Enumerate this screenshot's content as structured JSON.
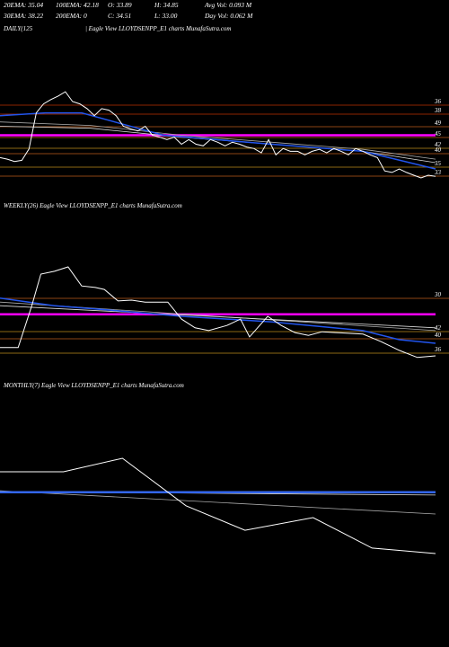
{
  "header": [
    "20EMA: 35.04",
    "100EMA: 42.18",
    "O: 33.89",
    "H: 34.85",
    "Avg Vol: 0.093 M",
    "30EMA: 38.22",
    "200EMA: 0",
    "C: 34.51",
    "L: 33.00",
    "Day Vol: 0.062 M"
  ],
  "chart_data": [
    {
      "type": "line",
      "title": "DAILY(125",
      "subtitle": "| Eagle  View  LLOYDSENPP_E1 charts MunafaSutra.com",
      "xlim": [
        0,
        480
      ],
      "ylim": [
        31,
        56
      ],
      "levels": [
        {
          "value": 36,
          "color": "#8b2500"
        },
        {
          "value": 38,
          "color": "#8b2500"
        },
        {
          "value": 49,
          "color": "#8b4513"
        },
        {
          "value": 45,
          "color": "#8b4513"
        },
        {
          "value": 42,
          "color": "#8b6914"
        },
        {
          "value": 40,
          "color": "#8b4513"
        },
        {
          "value": 35,
          "color": "#8b6914"
        },
        {
          "value": 33,
          "color": "#8b4513"
        }
      ],
      "series": [
        {
          "color": "#ff00ff",
          "width": 2.5,
          "x": [
            0,
            480
          ],
          "values": [
            43.5,
            43.5
          ]
        },
        {
          "color": "#aaaaaa",
          "width": 0.8,
          "x": [
            0,
            100,
            200,
            300,
            400,
            480
          ],
          "values": [
            46.9,
            46.0,
            43.5,
            41.7,
            39.9,
            37.4
          ]
        },
        {
          "color": "#dddddd",
          "width": 0.8,
          "x": [
            0,
            100,
            200,
            300,
            400,
            480
          ],
          "values": [
            45.8,
            45.3,
            43.0,
            41.2,
            39.4,
            36.5
          ]
        },
        {
          "color": "#2255ee",
          "width": 1.5,
          "x": [
            0,
            50,
            90,
            180,
            300,
            400,
            480
          ],
          "values": [
            48.5,
            49.2,
            49.2,
            43.5,
            41.2,
            39.4,
            34.9
          ]
        },
        {
          "color": "#ffffff",
          "width": 1,
          "x": [
            0,
            8,
            16,
            24,
            32,
            40,
            48,
            56,
            64,
            72,
            80,
            88,
            96,
            104,
            112,
            120,
            128,
            136,
            144,
            152,
            160,
            168,
            176,
            184,
            192,
            200,
            208,
            216,
            224,
            232,
            240,
            248,
            256,
            264,
            272,
            280,
            288,
            296,
            304,
            312,
            320,
            328,
            336,
            344,
            352,
            360,
            368,
            376,
            384,
            392,
            400,
            408,
            416,
            424,
            432,
            440,
            448,
            456,
            464,
            472,
            480
          ],
          "values": [
            37.8,
            37.4,
            36.8,
            37.1,
            40,
            49.2,
            51.5,
            52.6,
            53.5,
            54.6,
            52.1,
            51.5,
            50.3,
            48.5,
            50.3,
            49.9,
            48.5,
            45.8,
            45.1,
            44.6,
            45.8,
            43.5,
            43.0,
            42.4,
            43.0,
            41.2,
            42.4,
            41.2,
            40.8,
            42.4,
            41.7,
            40.8,
            41.7,
            41.2,
            40.5,
            40.1,
            39.0,
            42.4,
            38.5,
            40.1,
            39.4,
            39.4,
            38.5,
            39.4,
            39.9,
            39.0,
            40.1,
            39.4,
            38.5,
            40.1,
            39.4,
            38.5,
            37.8,
            34.4,
            34.0,
            34.9,
            34.0,
            33.3,
            32.6,
            33.3,
            33.0
          ]
        }
      ]
    },
    {
      "type": "line",
      "title": "WEEKLY(26) Eagle  View  LLOYDSENPP_E1 charts MunafaSutra.com",
      "xlim": [
        0,
        480
      ],
      "ylim": [
        31,
        56
      ],
      "levels": [
        {
          "value": 30,
          "color": "#8b4513"
        },
        {
          "value": 42,
          "color": "#8b6914"
        },
        {
          "value": 40,
          "color": "#8b4513"
        },
        {
          "value": 36,
          "color": "#8b6914"
        }
      ],
      "series": [
        {
          "color": "#ff00ff",
          "width": 2.5,
          "x": [
            0,
            480
          ],
          "values": [
            42.4,
            42.4
          ]
        },
        {
          "color": "#aaaaaa",
          "width": 0.8,
          "x": [
            0,
            480
          ],
          "values": [
            45.5,
            38.3
          ]
        },
        {
          "color": "#dddddd",
          "width": 0.8,
          "x": [
            0,
            480
          ],
          "values": [
            44.6,
            39.0
          ]
        },
        {
          "color": "#2255ee",
          "width": 1.5,
          "x": [
            0,
            60,
            120,
            200,
            300,
            400,
            440,
            480
          ],
          "values": [
            46.5,
            44.6,
            43.5,
            41.9,
            40.5,
            38.3,
            36.0,
            35.1
          ]
        },
        {
          "color": "#ffffff",
          "width": 1,
          "x": [
            0,
            20,
            35,
            45,
            60,
            75,
            90,
            105,
            115,
            130,
            145,
            160,
            185,
            200,
            215,
            230,
            250,
            265,
            275,
            295,
            310,
            325,
            340,
            355,
            370,
            400,
            420,
            440,
            460,
            480
          ],
          "values": [
            34.0,
            34.0,
            44.6,
            52.6,
            53.3,
            54.4,
            49.6,
            49.2,
            48.7,
            45.8,
            46.0,
            45.5,
            45.5,
            41.2,
            39.0,
            38.3,
            39.6,
            41.2,
            36.7,
            41.9,
            39.6,
            37.8,
            37.1,
            38.0,
            37.8,
            37.4,
            35.5,
            33.3,
            31.5,
            31.9
          ]
        }
      ]
    },
    {
      "type": "line",
      "title": "MONTHLY(7) Eagle  View  LLOYDSENPP_E1 charts MunafaSutra.com",
      "xlim": [
        0,
        480
      ],
      "ylim": [
        31,
        56
      ],
      "levels": [],
      "series": [
        {
          "color": "#aaaaaa",
          "width": 0.8,
          "x": [
            0,
            480
          ],
          "values": [
            47.8,
            41.9
          ]
        },
        {
          "color": "#dddddd",
          "width": 0.8,
          "x": [
            0,
            480
          ],
          "values": [
            47.6,
            46.7
          ]
        },
        {
          "color": "#3366ee",
          "width": 2.5,
          "x": [
            0,
            480
          ],
          "values": [
            47.4,
            47.4
          ]
        },
        {
          "color": "#ffffff",
          "width": 1,
          "x": [
            0,
            70,
            135,
            205,
            270,
            345,
            410,
            480
          ],
          "values": [
            52.6,
            52.6,
            56.0,
            44.0,
            37.8,
            41.0,
            33.3,
            31.9
          ]
        }
      ]
    }
  ]
}
